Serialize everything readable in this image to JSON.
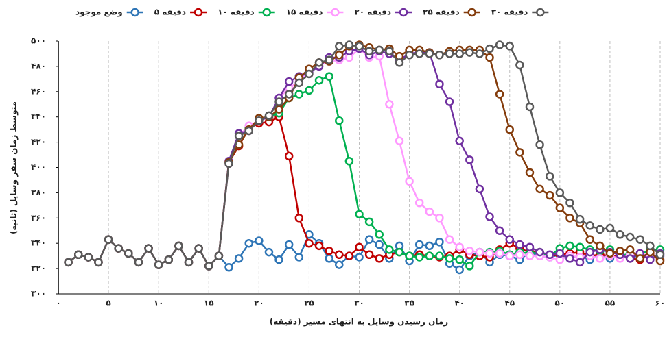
{
  "chart_data": {
    "type": "line",
    "x_label": "زمان رسیدن وسایل به انتهای مسیر (دقیقه)",
    "y_label": "متوسط زمان سفر وسایل (ثانیه)",
    "x": [
      1,
      2,
      3,
      4,
      5,
      6,
      7,
      8,
      9,
      10,
      11,
      12,
      13,
      14,
      15,
      16,
      17,
      18,
      19,
      20,
      21,
      22,
      23,
      24,
      25,
      26,
      27,
      28,
      29,
      30,
      31,
      32,
      33,
      34,
      35,
      36,
      37,
      38,
      39,
      40,
      41,
      42,
      43,
      44,
      45,
      46,
      47,
      48,
      49,
      50,
      51,
      52,
      53,
      54,
      55,
      56,
      57,
      58,
      59,
      60
    ],
    "series": [
      {
        "name": "وضع موجود",
        "color": "#2e75b6",
        "values": [
          325,
          331,
          329,
          325,
          343,
          336,
          332,
          325,
          336,
          323,
          327,
          338,
          325,
          336,
          322,
          330,
          321,
          328,
          340,
          342,
          333,
          327,
          339,
          329,
          347,
          340,
          328,
          323,
          330,
          329,
          343,
          339,
          328,
          338,
          326,
          339,
          338,
          341,
          324,
          319,
          330,
          333,
          325,
          331,
          330,
          327,
          333,
          330,
          329,
          331,
          328,
          330,
          327,
          331,
          328,
          330,
          328,
          331,
          330,
          330
        ]
      },
      {
        "name": "۵ دقیقه",
        "color": "#c00000",
        "values": [
          325,
          331,
          329,
          325,
          343,
          336,
          332,
          325,
          336,
          323,
          327,
          338,
          325,
          336,
          322,
          330,
          404,
          417,
          431,
          435,
          436,
          440,
          409,
          360,
          340,
          338,
          334,
          331,
          330,
          337,
          331,
          328,
          331,
          333,
          330,
          331,
          330,
          329,
          330,
          335,
          331,
          330,
          329,
          335,
          340,
          336,
          333,
          333,
          330,
          331,
          332,
          333,
          330,
          331,
          330,
          330,
          328,
          327,
          331,
          327
        ]
      },
      {
        "name": "۱۰ دقیقه",
        "color": "#00b050",
        "values": [
          325,
          331,
          329,
          325,
          343,
          336,
          332,
          325,
          336,
          323,
          327,
          338,
          325,
          336,
          322,
          330,
          404,
          425,
          431,
          437,
          440,
          443,
          455,
          458,
          461,
          469,
          472,
          437,
          405,
          363,
          357,
          347,
          335,
          333,
          330,
          329,
          330,
          330,
          328,
          327,
          322,
          333,
          333,
          334,
          331,
          333,
          332,
          333,
          330,
          336,
          338,
          337,
          335,
          334,
          335,
          330,
          332,
          331,
          335,
          335
        ]
      },
      {
        "name": "۱۵ دقیقه",
        "color": "#ff99ff",
        "values": [
          325,
          331,
          329,
          325,
          343,
          336,
          332,
          325,
          336,
          323,
          327,
          338,
          325,
          336,
          322,
          330,
          403,
          425,
          433,
          437,
          440,
          455,
          463,
          468,
          476,
          481,
          484,
          485,
          487,
          494,
          487,
          488,
          450,
          421,
          389,
          372,
          365,
          360,
          343,
          337,
          334,
          333,
          332,
          332,
          330,
          331,
          330,
          330,
          329,
          327,
          330,
          329,
          330,
          328,
          330,
          328,
          331,
          332,
          330,
          330
        ]
      },
      {
        "name": "۲۰ دقیقه",
        "color": "#7030a0",
        "values": [
          325,
          331,
          329,
          325,
          343,
          336,
          332,
          325,
          336,
          323,
          327,
          338,
          325,
          336,
          322,
          330,
          405,
          427,
          429,
          437,
          440,
          455,
          468,
          472,
          475,
          480,
          487,
          487,
          492,
          494,
          489,
          492,
          490,
          485,
          490,
          491,
          491,
          466,
          452,
          421,
          406,
          383,
          361,
          350,
          343,
          339,
          337,
          333,
          331,
          332,
          328,
          325,
          333,
          335,
          333,
          331,
          328,
          332,
          327,
          332
        ]
      },
      {
        "name": "۲۵ دقیقه",
        "color": "#843c0c",
        "values": [
          325,
          331,
          329,
          325,
          343,
          336,
          332,
          325,
          336,
          323,
          327,
          338,
          325,
          336,
          322,
          330,
          404,
          418,
          430,
          439,
          440,
          446,
          455,
          471,
          478,
          483,
          484,
          489,
          496,
          497,
          495,
          493,
          494,
          488,
          493,
          493,
          491,
          489,
          492,
          493,
          493,
          493,
          487,
          458,
          430,
          412,
          396,
          383,
          378,
          368,
          360,
          356,
          343,
          338,
          332,
          334,
          335,
          328,
          333,
          326
        ]
      },
      {
        "name": "۳۰ دقیقه",
        "color": "#595959",
        "values": [
          325,
          331,
          329,
          325,
          343,
          336,
          332,
          325,
          336,
          323,
          327,
          338,
          325,
          336,
          322,
          330,
          403,
          425,
          429,
          437,
          441,
          452,
          458,
          467,
          474,
          483,
          485,
          496,
          497,
          496,
          492,
          493,
          492,
          483,
          489,
          490,
          490,
          489,
          490,
          490,
          491,
          490,
          494,
          497,
          496,
          481,
          448,
          418,
          393,
          380,
          372,
          359,
          354,
          351,
          352,
          347,
          345,
          343,
          338,
          331
        ]
      }
    ],
    "xlim": [
      0,
      60
    ],
    "xticks": [
      {
        "value": 0,
        "label": "۰"
      },
      {
        "value": 5,
        "label": "۵"
      },
      {
        "value": 10,
        "label": "۱۰"
      },
      {
        "value": 15,
        "label": "۱۵"
      },
      {
        "value": 20,
        "label": "۲۰"
      },
      {
        "value": 25,
        "label": "۲۵"
      },
      {
        "value": 30,
        "label": "۳۰"
      },
      {
        "value": 35,
        "label": "۳۵"
      },
      {
        "value": 40,
        "label": "۴۰"
      },
      {
        "value": 45,
        "label": "۴۵"
      },
      {
        "value": 50,
        "label": "۵۰"
      },
      {
        "value": 55,
        "label": "۵۵"
      },
      {
        "value": 60,
        "label": "۶۰"
      }
    ],
    "ylim": [
      300,
      500
    ],
    "yticks": [
      {
        "value": 300,
        "label": "۳۰۰"
      },
      {
        "value": 320,
        "label": "۳۲۰"
      },
      {
        "value": 340,
        "label": "۳۴۰"
      },
      {
        "value": 360,
        "label": "۳۶۰"
      },
      {
        "value": 380,
        "label": "۳۸۰"
      },
      {
        "value": 400,
        "label": "۴۰۰"
      },
      {
        "value": 420,
        "label": "۴۲۰"
      },
      {
        "value": 440,
        "label": "۴۴۰"
      },
      {
        "value": 460,
        "label": "۴۶۰"
      },
      {
        "value": 480,
        "label": "۴۸۰"
      },
      {
        "value": 500,
        "label": "۵۰۰"
      }
    ],
    "grid": "x",
    "legend": "top"
  }
}
